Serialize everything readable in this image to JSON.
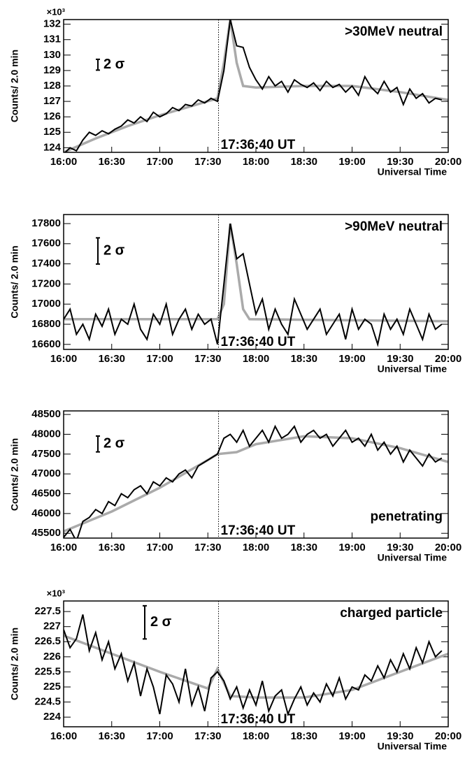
{
  "chart_data": [
    {
      "type": "line",
      "title": ">30MeV neutral",
      "title_position": "top-right",
      "y_label": "Counts/ 2.0 min",
      "y_scale_label": "×10³",
      "x_label": "Universal Time",
      "xlim": [
        "16:00",
        "20:00"
      ],
      "xticks": [
        "16:00",
        "16:30",
        "17:00",
        "17:30",
        "18:00",
        "18:30",
        "19:00",
        "19:30",
        "20:00"
      ],
      "ylim": [
        123.7,
        132.3
      ],
      "yticks": [
        124,
        125,
        126,
        127,
        128,
        129,
        130,
        131,
        132
      ],
      "event": {
        "x": "17:36:40",
        "label": "17:36:40 UT"
      },
      "sigma_bar": {
        "label": "2 σ",
        "size": 0.7
      },
      "series": [
        {
          "color": "#aaaaaa",
          "x": [
            "16:00",
            "16:20",
            "16:40",
            "17:00",
            "17:20",
            "17:36",
            "17:40",
            "17:44",
            "17:48",
            "17:52",
            "18:00",
            "18:30",
            "19:00",
            "19:30",
            "20:00"
          ],
          "values": [
            123.7,
            124.6,
            125.4,
            126.1,
            126.7,
            127.2,
            129.5,
            132.3,
            129.5,
            128.0,
            127.9,
            128.0,
            128.0,
            127.6,
            127.1
          ]
        },
        {
          "color": "#000000",
          "x": [
            "16:00",
            "16:04",
            "16:08",
            "16:12",
            "16:16",
            "16:20",
            "16:24",
            "16:28",
            "16:32",
            "16:36",
            "16:40",
            "16:44",
            "16:48",
            "16:52",
            "16:56",
            "17:00",
            "17:04",
            "17:08",
            "17:12",
            "17:16",
            "17:20",
            "17:24",
            "17:28",
            "17:32",
            "17:36",
            "17:40",
            "17:44",
            "17:48",
            "17:52",
            "17:56",
            "18:00",
            "18:04",
            "18:08",
            "18:12",
            "18:16",
            "18:20",
            "18:24",
            "18:28",
            "18:32",
            "18:36",
            "18:40",
            "18:44",
            "18:48",
            "18:52",
            "18:56",
            "19:00",
            "19:04",
            "19:08",
            "19:12",
            "19:16",
            "19:20",
            "19:24",
            "19:28",
            "19:32",
            "19:36",
            "19:40",
            "19:44",
            "19:48",
            "19:52",
            "19:56"
          ],
          "values": [
            123.6,
            124.0,
            123.8,
            124.5,
            125.0,
            124.8,
            125.1,
            124.9,
            125.2,
            125.4,
            125.8,
            125.6,
            126.0,
            125.7,
            126.3,
            126.0,
            126.2,
            126.6,
            126.4,
            126.8,
            126.7,
            127.1,
            126.9,
            127.2,
            127.0,
            129.0,
            132.3,
            130.6,
            130.5,
            129.2,
            128.4,
            127.8,
            128.6,
            128.0,
            128.3,
            127.6,
            128.4,
            128.1,
            127.9,
            128.2,
            127.7,
            128.3,
            127.9,
            128.1,
            127.6,
            128.0,
            127.4,
            128.6,
            127.9,
            127.5,
            128.3,
            127.6,
            127.9,
            126.8,
            127.8,
            127.2,
            127.5,
            126.9,
            127.2,
            127.1
          ]
        }
      ]
    },
    {
      "type": "line",
      "title": ">90MeV neutral",
      "title_position": "top-right",
      "y_label": "Counts/ 2.0 min",
      "x_label": "Universal Time",
      "xlim": [
        "16:00",
        "20:00"
      ],
      "xticks": [
        "16:00",
        "16:30",
        "17:00",
        "17:30",
        "18:00",
        "18:30",
        "19:00",
        "19:30",
        "20:00"
      ],
      "ylim": [
        16550,
        17890
      ],
      "yticks": [
        16600,
        16800,
        17000,
        17200,
        17400,
        17600,
        17800
      ],
      "event": {
        "x": "17:36:40",
        "label": "17:36:40 UT"
      },
      "sigma_bar": {
        "label": "2 σ",
        "size": 260
      },
      "series": [
        {
          "color": "#aaaaaa",
          "x": [
            "16:00",
            "17:36",
            "17:40",
            "17:44",
            "17:48",
            "17:52",
            "17:56",
            "20:00"
          ],
          "values": [
            16850,
            16850,
            17000,
            17800,
            17400,
            16950,
            16850,
            16830
          ]
        },
        {
          "color": "#000000",
          "x": [
            "16:00",
            "16:04",
            "16:08",
            "16:12",
            "16:16",
            "16:20",
            "16:24",
            "16:28",
            "16:32",
            "16:36",
            "16:40",
            "16:44",
            "16:48",
            "16:52",
            "16:56",
            "17:00",
            "17:04",
            "17:08",
            "17:12",
            "17:16",
            "17:20",
            "17:24",
            "17:28",
            "17:32",
            "17:36",
            "17:40",
            "17:44",
            "17:48",
            "17:52",
            "17:56",
            "18:00",
            "18:04",
            "18:08",
            "18:12",
            "18:16",
            "18:20",
            "18:24",
            "18:28",
            "18:32",
            "18:36",
            "18:40",
            "18:44",
            "18:48",
            "18:52",
            "18:56",
            "19:00",
            "19:04",
            "19:08",
            "19:12",
            "19:16",
            "19:20",
            "19:24",
            "19:28",
            "19:32",
            "19:36",
            "19:40",
            "19:44",
            "19:48",
            "19:52",
            "19:56"
          ],
          "values": [
            16850,
            16950,
            16700,
            16800,
            16650,
            16900,
            16780,
            16950,
            16700,
            16850,
            16800,
            17000,
            16750,
            16650,
            16900,
            16800,
            17000,
            16700,
            16850,
            16950,
            16750,
            16900,
            16800,
            16850,
            16600,
            17200,
            17800,
            17450,
            17500,
            17200,
            16900,
            17050,
            16750,
            16950,
            16800,
            16700,
            17050,
            16900,
            16750,
            16850,
            16950,
            16700,
            16800,
            16900,
            16650,
            16950,
            16750,
            16850,
            16800,
            16600,
            16900,
            16750,
            16850,
            16700,
            16950,
            16800,
            16650,
            16900,
            16750,
            16800
          ]
        }
      ]
    },
    {
      "type": "line",
      "title": "penetrating",
      "title_position": "bottom-right",
      "y_label": "Counts/ 2.0 min",
      "x_label": "Universal Time",
      "xlim": [
        "16:00",
        "20:00"
      ],
      "xticks": [
        "16:00",
        "16:30",
        "17:00",
        "17:30",
        "18:00",
        "18:30",
        "19:00",
        "19:30",
        "20:00"
      ],
      "ylim": [
        45380,
        48590
      ],
      "yticks": [
        45500,
        46000,
        46500,
        47000,
        47500,
        48000,
        48500
      ],
      "event": {
        "x": "17:36:40",
        "label": "17:36:40 UT"
      },
      "sigma_bar": {
        "label": "2 σ",
        "size": 400
      },
      "series": [
        {
          "color": "#aaaaaa",
          "x": [
            "16:00",
            "16:30",
            "17:00",
            "17:30",
            "17:36",
            "17:48",
            "18:00",
            "18:30",
            "19:00",
            "19:30",
            "20:00"
          ],
          "values": [
            45550,
            46050,
            46650,
            47350,
            47500,
            47550,
            47750,
            47950,
            47900,
            47650,
            47300
          ]
        },
        {
          "color": "#000000",
          "x": [
            "16:00",
            "16:04",
            "16:08",
            "16:12",
            "16:16",
            "16:20",
            "16:24",
            "16:28",
            "16:32",
            "16:36",
            "16:40",
            "16:44",
            "16:48",
            "16:52",
            "16:56",
            "17:00",
            "17:04",
            "17:08",
            "17:12",
            "17:16",
            "17:20",
            "17:24",
            "17:28",
            "17:32",
            "17:36",
            "17:40",
            "17:44",
            "17:48",
            "17:52",
            "17:56",
            "18:00",
            "18:04",
            "18:08",
            "18:12",
            "18:16",
            "18:20",
            "18:24",
            "18:28",
            "18:32",
            "18:36",
            "18:40",
            "18:44",
            "18:48",
            "18:52",
            "18:56",
            "19:00",
            "19:04",
            "19:08",
            "19:12",
            "19:16",
            "19:20",
            "19:24",
            "19:28",
            "19:32",
            "19:36",
            "19:40",
            "19:44",
            "19:48",
            "19:52",
            "19:56"
          ],
          "values": [
            45400,
            45600,
            45300,
            45800,
            45900,
            46100,
            46000,
            46300,
            46200,
            46500,
            46400,
            46600,
            46700,
            46500,
            46800,
            46700,
            46900,
            46800,
            47000,
            47100,
            46900,
            47200,
            47300,
            47400,
            47500,
            47900,
            48000,
            47800,
            48100,
            47700,
            47900,
            48100,
            47800,
            48200,
            47900,
            48000,
            48200,
            47800,
            48000,
            48100,
            47900,
            48000,
            47700,
            47900,
            48100,
            47800,
            47900,
            47700,
            48000,
            47600,
            47800,
            47500,
            47700,
            47300,
            47600,
            47400,
            47200,
            47500,
            47300,
            47400
          ]
        }
      ]
    },
    {
      "type": "line",
      "title": "charged particle",
      "title_position": "top-right",
      "y_label": "Counts/ 2.0 min",
      "y_scale_label": "×10³",
      "x_label": "Universal Time",
      "xlim": [
        "16:00",
        "20:00"
      ],
      "xticks": [
        "16:00",
        "16:30",
        "17:00",
        "17:30",
        "18:00",
        "18:30",
        "19:00",
        "19:30",
        "20:00"
      ],
      "ylim": [
        223.68,
        227.85
      ],
      "yticks": [
        224,
        224.5,
        225,
        225.5,
        226,
        226.5,
        227,
        227.5
      ],
      "event": {
        "x": "17:36:40",
        "label": "17:36:40 UT"
      },
      "sigma_bar": {
        "label": "2 σ",
        "size": 1.1
      },
      "series": [
        {
          "color": "#aaaaaa",
          "x": [
            "16:00",
            "16:30",
            "17:00",
            "17:30",
            "17:36",
            "17:44",
            "18:00",
            "18:30",
            "19:00",
            "19:30",
            "20:00"
          ],
          "values": [
            226.7,
            226.1,
            225.5,
            224.95,
            225.6,
            224.7,
            224.65,
            224.65,
            224.9,
            225.5,
            226.1
          ]
        },
        {
          "color": "#000000",
          "x": [
            "16:00",
            "16:04",
            "16:08",
            "16:12",
            "16:16",
            "16:20",
            "16:24",
            "16:28",
            "16:32",
            "16:36",
            "16:40",
            "16:44",
            "16:48",
            "16:52",
            "16:56",
            "17:00",
            "17:04",
            "17:08",
            "17:12",
            "17:16",
            "17:20",
            "17:24",
            "17:28",
            "17:32",
            "17:36",
            "17:40",
            "17:44",
            "17:48",
            "17:52",
            "17:56",
            "18:00",
            "18:04",
            "18:08",
            "18:12",
            "18:16",
            "18:20",
            "18:24",
            "18:28",
            "18:32",
            "18:36",
            "18:40",
            "18:44",
            "18:48",
            "18:52",
            "18:56",
            "19:00",
            "19:04",
            "19:08",
            "19:12",
            "19:16",
            "19:20",
            "19:24",
            "19:28",
            "19:32",
            "19:36",
            "19:40",
            "19:44",
            "19:48",
            "19:52",
            "19:56"
          ],
          "values": [
            226.9,
            226.3,
            226.6,
            227.4,
            226.2,
            226.8,
            225.9,
            226.5,
            225.6,
            226.1,
            225.2,
            225.8,
            224.7,
            225.6,
            225.0,
            224.1,
            225.4,
            225.1,
            224.5,
            225.6,
            224.4,
            225.0,
            224.2,
            225.3,
            225.5,
            225.2,
            224.6,
            225.0,
            224.3,
            224.9,
            224.4,
            225.2,
            224.2,
            224.7,
            224.9,
            224.1,
            224.6,
            225.0,
            224.4,
            224.8,
            224.5,
            225.1,
            224.7,
            225.3,
            224.6,
            225.0,
            224.9,
            225.4,
            225.2,
            225.7,
            225.3,
            225.9,
            225.5,
            226.1,
            225.6,
            226.3,
            225.8,
            226.5,
            226.0,
            226.2
          ]
        }
      ]
    }
  ]
}
